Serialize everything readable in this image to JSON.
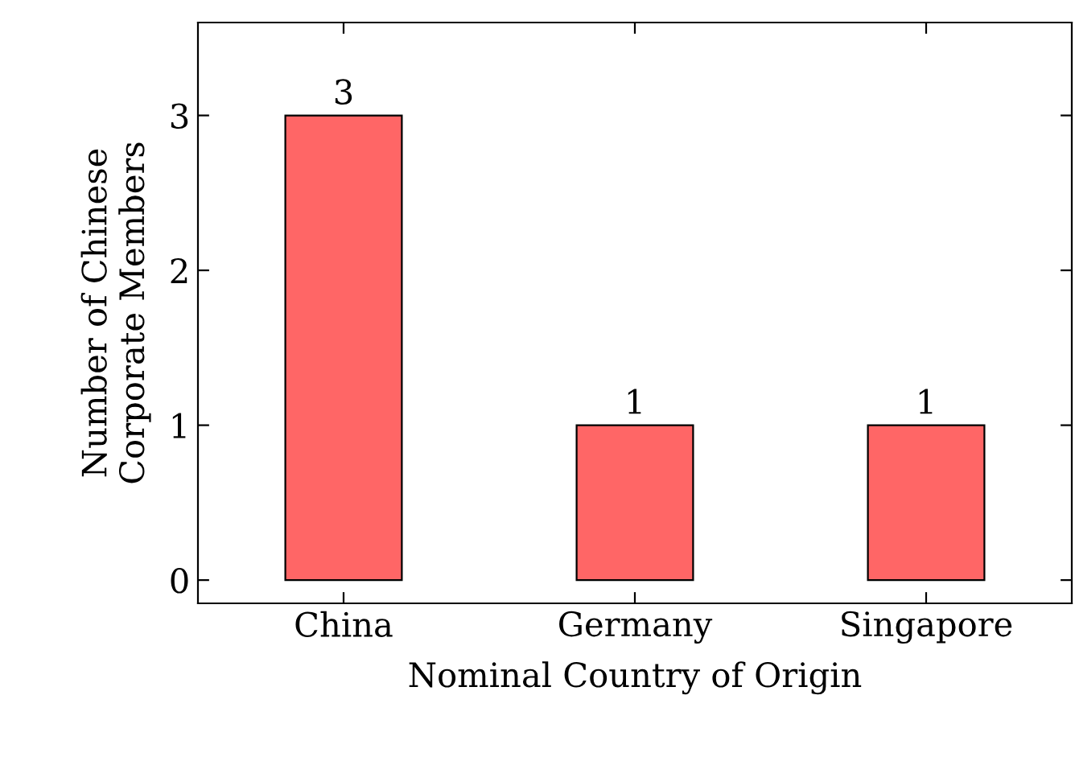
{
  "chart_data": {
    "type": "bar",
    "xlabel": "Nominal Country of Origin",
    "ylabel": "Number of Chinese\nCorporate Members",
    "categories": [
      "China",
      "Germany",
      "Singapore"
    ],
    "values": [
      3,
      1,
      1
    ],
    "color": "#ff6666",
    "ylim": [
      -0.15,
      3.6
    ],
    "yticks": [
      0,
      1,
      2,
      3
    ],
    "grid": false,
    "data_labels": true
  }
}
